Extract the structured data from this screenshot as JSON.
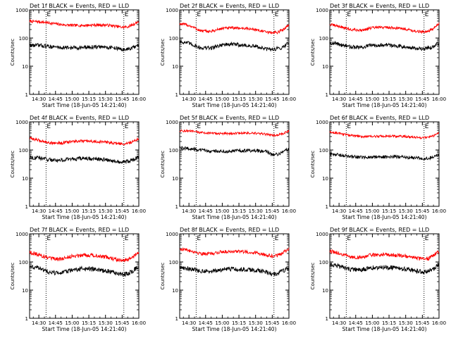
{
  "figure": {
    "background": "#ffffff"
  },
  "colors": {
    "events": "#000000",
    "lld": "#ff0000",
    "axis": "#000000"
  },
  "chart_data": [
    {
      "type": "line",
      "title": "Det 1f BLACK = Events, RED = LLD",
      "xlabel": "Start Time (18-Jun-05 14:21:40)",
      "ylabel": "Counts/sec",
      "yscale": "log",
      "ylim": [
        1,
        1000
      ],
      "y_tick_labels": [
        "1",
        "10",
        "100",
        "1000"
      ],
      "x_tick_labels": [
        "14:30",
        "14:45",
        "15:00",
        "15:15",
        "15:30",
        "15:45",
        "16:00"
      ],
      "x_tick_minutes": [
        30,
        45,
        60,
        75,
        90,
        105,
        120
      ],
      "xlim_minutes": [
        21.67,
        120
      ],
      "markers": [
        {
          "label": "E",
          "x_minutes": 36.5,
          "style": "dotted"
        },
        {
          "label": "E",
          "x_minutes": 106.5,
          "style": "dotted"
        }
      ],
      "series": [
        {
          "color": "#ff0000",
          "x_minutes": [
            22,
            30,
            40,
            50,
            60,
            70,
            80,
            90,
            100,
            105,
            110,
            115,
            120
          ],
          "values": [
            390,
            380,
            340,
            300,
            280,
            280,
            290,
            290,
            260,
            240,
            250,
            300,
            390
          ],
          "noise": 0.05
        },
        {
          "color": "#000000",
          "x_minutes": [
            22,
            30,
            40,
            50,
            60,
            70,
            80,
            90,
            100,
            105,
            110,
            115,
            120
          ],
          "values": [
            55,
            55,
            50,
            46,
            45,
            46,
            48,
            48,
            44,
            38,
            40,
            45,
            55
          ],
          "noise": 0.07
        }
      ]
    },
    {
      "type": "line",
      "title": "Det 2f BLACK = Events, RED = LLD",
      "xlabel": "Start Time (18-Jun-05 14:21:40)",
      "ylabel": "Counts/sec",
      "yscale": "log",
      "ylim": [
        1,
        1000
      ],
      "y_tick_labels": [
        "1",
        "10",
        "100",
        "1000"
      ],
      "x_tick_labels": [
        "14:30",
        "14:45",
        "15:00",
        "15:15",
        "15:30",
        "15:45",
        "16:00"
      ],
      "x_tick_minutes": [
        30,
        45,
        60,
        75,
        90,
        105,
        120
      ],
      "xlim_minutes": [
        21.67,
        120
      ],
      "markers": [
        {
          "label": "E",
          "x_minutes": 36.5,
          "style": "dotted"
        },
        {
          "label": "E",
          "x_minutes": 106.5,
          "style": "dotted"
        }
      ],
      "series": [
        {
          "color": "#ff0000",
          "x_minutes": [
            22,
            30,
            40,
            50,
            60,
            70,
            80,
            90,
            100,
            105,
            110,
            115,
            120
          ],
          "values": [
            320,
            280,
            180,
            170,
            220,
            230,
            220,
            200,
            160,
            155,
            160,
            200,
            300
          ],
          "noise": 0.05
        },
        {
          "color": "#000000",
          "x_minutes": [
            22,
            30,
            40,
            50,
            60,
            70,
            80,
            90,
            100,
            105,
            110,
            115,
            120
          ],
          "values": [
            75,
            65,
            45,
            44,
            58,
            60,
            55,
            50,
            40,
            40,
            42,
            48,
            70
          ],
          "noise": 0.07
        }
      ]
    },
    {
      "type": "line",
      "title": "Det 3f BLACK = Events, RED = LLD",
      "xlabel": "Start Time (18-Jun-05 14:21:40)",
      "ylabel": "Counts/sec",
      "yscale": "log",
      "ylim": [
        1,
        1000
      ],
      "y_tick_labels": [
        "1",
        "10",
        "100",
        "1000"
      ],
      "x_tick_labels": [
        "14:30",
        "14:45",
        "15:00",
        "15:15",
        "15:30",
        "15:45",
        "16:00"
      ],
      "x_tick_minutes": [
        30,
        45,
        60,
        75,
        90,
        105,
        120
      ],
      "xlim_minutes": [
        21.67,
        120
      ],
      "markers": [
        {
          "label": "E",
          "x_minutes": 36.5,
          "style": "dotted"
        },
        {
          "label": "E",
          "x_minutes": 106.5,
          "style": "dotted"
        }
      ],
      "series": [
        {
          "color": "#ff0000",
          "x_minutes": [
            22,
            30,
            40,
            50,
            60,
            70,
            80,
            90,
            100,
            105,
            110,
            115,
            120
          ],
          "values": [
            300,
            260,
            200,
            190,
            230,
            240,
            230,
            210,
            170,
            165,
            175,
            210,
            320
          ],
          "noise": 0.05
        },
        {
          "color": "#000000",
          "x_minutes": [
            22,
            30,
            40,
            50,
            60,
            70,
            80,
            90,
            100,
            105,
            110,
            115,
            120
          ],
          "values": [
            68,
            60,
            48,
            46,
            56,
            58,
            54,
            50,
            42,
            41,
            44,
            50,
            68
          ],
          "noise": 0.07
        }
      ]
    },
    {
      "type": "line",
      "title": "Det 4f BLACK = Events, RED = LLD",
      "xlabel": "Start Time (18-Jun-05 14:21:40)",
      "ylabel": "Counts/sec",
      "yscale": "log",
      "ylim": [
        1,
        1000
      ],
      "y_tick_labels": [
        "1",
        "10",
        "100",
        "1000"
      ],
      "x_tick_labels": [
        "14:30",
        "14:45",
        "15:00",
        "15:15",
        "15:30",
        "15:45",
        "16:00"
      ],
      "x_tick_minutes": [
        30,
        45,
        60,
        75,
        90,
        105,
        120
      ],
      "xlim_minutes": [
        21.67,
        120
      ],
      "markers": [
        {
          "label": "E",
          "x_minutes": 36.5,
          "style": "dotted"
        },
        {
          "label": "E",
          "x_minutes": 106.5,
          "style": "dotted"
        }
      ],
      "series": [
        {
          "color": "#ff0000",
          "x_minutes": [
            22,
            30,
            40,
            50,
            60,
            70,
            80,
            90,
            100,
            105,
            110,
            115,
            120
          ],
          "values": [
            260,
            220,
            180,
            175,
            200,
            205,
            200,
            190,
            170,
            165,
            170,
            200,
            260
          ],
          "noise": 0.05
        },
        {
          "color": "#000000",
          "x_minutes": [
            22,
            30,
            40,
            50,
            60,
            70,
            80,
            90,
            100,
            105,
            110,
            115,
            120
          ],
          "values": [
            55,
            52,
            45,
            43,
            48,
            50,
            48,
            45,
            40,
            38,
            40,
            45,
            55
          ],
          "noise": 0.07
        }
      ]
    },
    {
      "type": "line",
      "title": "Det 5f BLACK = Events, RED = LLD",
      "xlabel": "Start Time (18-Jun-05 14:21:40)",
      "ylabel": "Counts/sec",
      "yscale": "log",
      "ylim": [
        1,
        1000
      ],
      "y_tick_labels": [
        "1",
        "10",
        "100",
        "1000"
      ],
      "x_tick_labels": [
        "14:30",
        "14:45",
        "15:00",
        "15:15",
        "15:30",
        "15:45",
        "16:00"
      ],
      "x_tick_minutes": [
        30,
        45,
        60,
        75,
        90,
        105,
        120
      ],
      "xlim_minutes": [
        21.67,
        120
      ],
      "markers": [
        {
          "label": "E",
          "x_minutes": 36.5,
          "style": "dotted"
        },
        {
          "label": "E",
          "x_minutes": 106.5,
          "style": "dotted"
        }
      ],
      "series": [
        {
          "color": "#ff0000",
          "x_minutes": [
            22,
            30,
            40,
            50,
            60,
            70,
            80,
            90,
            100,
            105,
            110,
            115,
            120
          ],
          "values": [
            480,
            470,
            420,
            390,
            380,
            390,
            400,
            390,
            360,
            330,
            340,
            380,
            480
          ],
          "noise": 0.04
        },
        {
          "color": "#000000",
          "x_minutes": [
            22,
            30,
            40,
            50,
            60,
            70,
            80,
            90,
            100,
            105,
            110,
            115,
            120
          ],
          "values": [
            120,
            110,
            100,
            92,
            90,
            92,
            96,
            95,
            88,
            65,
            72,
            85,
            115
          ],
          "noise": 0.06
        }
      ]
    },
    {
      "type": "line",
      "title": "Det 6f BLACK = Events, RED = LLD",
      "xlabel": "Start Time (18-Jun-05 14:21:40)",
      "ylabel": "Counts/sec",
      "yscale": "log",
      "ylim": [
        1,
        1000
      ],
      "y_tick_labels": [
        "1",
        "10",
        "100",
        "1000"
      ],
      "x_tick_labels": [
        "14:30",
        "14:45",
        "15:00",
        "15:15",
        "15:30",
        "15:45",
        "16:00"
      ],
      "x_tick_minutes": [
        30,
        45,
        60,
        75,
        90,
        105,
        120
      ],
      "xlim_minutes": [
        21.67,
        120
      ],
      "markers": [
        {
          "label": "E",
          "x_minutes": 36.5,
          "style": "dotted"
        },
        {
          "label": "E",
          "x_minutes": 106.5,
          "style": "dotted"
        }
      ],
      "series": [
        {
          "color": "#ff0000",
          "x_minutes": [
            22,
            30,
            40,
            50,
            60,
            70,
            80,
            90,
            100,
            105,
            110,
            115,
            120
          ],
          "values": [
            420,
            390,
            330,
            300,
            300,
            310,
            310,
            300,
            280,
            270,
            280,
            320,
            420
          ],
          "noise": 0.04
        },
        {
          "color": "#000000",
          "x_minutes": [
            22,
            30,
            40,
            50,
            60,
            70,
            80,
            90,
            100,
            105,
            110,
            115,
            120
          ],
          "values": [
            70,
            66,
            58,
            55,
            56,
            57,
            58,
            56,
            52,
            48,
            50,
            56,
            70
          ],
          "noise": 0.06
        }
      ]
    },
    {
      "type": "line",
      "title": "Det 7f BLACK = Events, RED = LLD",
      "xlabel": "Start Time (18-Jun-05 14:21:40)",
      "ylabel": "Counts/sec",
      "yscale": "log",
      "ylim": [
        1,
        1000
      ],
      "y_tick_labels": [
        "1",
        "10",
        "100",
        "1000"
      ],
      "x_tick_labels": [
        "14:30",
        "14:45",
        "15:00",
        "15:15",
        "15:30",
        "15:45",
        "16:00"
      ],
      "x_tick_minutes": [
        30,
        45,
        60,
        75,
        90,
        105,
        120
      ],
      "xlim_minutes": [
        21.67,
        120
      ],
      "markers": [
        {
          "label": "E",
          "x_minutes": 36.5,
          "style": "dotted"
        },
        {
          "label": "E",
          "x_minutes": 106.5,
          "style": "dotted"
        }
      ],
      "series": [
        {
          "color": "#ff0000",
          "x_minutes": [
            22,
            30,
            40,
            50,
            60,
            70,
            80,
            90,
            100,
            105,
            110,
            115,
            120
          ],
          "values": [
            220,
            180,
            130,
            125,
            160,
            180,
            170,
            150,
            120,
            110,
            115,
            150,
            220
          ],
          "noise": 0.07
        },
        {
          "color": "#000000",
          "x_minutes": [
            22,
            30,
            40,
            50,
            60,
            70,
            80,
            90,
            100,
            105,
            110,
            115,
            120
          ],
          "values": [
            70,
            60,
            42,
            40,
            52,
            58,
            55,
            48,
            40,
            36,
            38,
            48,
            70
          ],
          "noise": 0.08
        }
      ]
    },
    {
      "type": "line",
      "title": "Det 8f BLACK = Events, RED = LLD",
      "xlabel": "Start Time (18-Jun-05 14:21:40)",
      "ylabel": "Counts/sec",
      "yscale": "log",
      "ylim": [
        1,
        1000
      ],
      "y_tick_labels": [
        "1",
        "10",
        "100",
        "1000"
      ],
      "x_tick_labels": [
        "14:30",
        "14:45",
        "15:00",
        "15:15",
        "15:30",
        "15:45",
        "16:00"
      ],
      "x_tick_minutes": [
        30,
        45,
        60,
        75,
        90,
        105,
        120
      ],
      "xlim_minutes": [
        21.67,
        120
      ],
      "markers": [
        {
          "label": "E",
          "x_minutes": 36.5,
          "style": "dotted"
        },
        {
          "label": "E",
          "x_minutes": 106.5,
          "style": "dotted"
        }
      ],
      "series": [
        {
          "color": "#ff0000",
          "x_minutes": [
            22,
            30,
            40,
            50,
            60,
            70,
            80,
            90,
            100,
            105,
            110,
            115,
            120
          ],
          "values": [
            290,
            260,
            200,
            195,
            230,
            240,
            230,
            210,
            180,
            160,
            170,
            210,
            290
          ],
          "noise": 0.06
        },
        {
          "color": "#000000",
          "x_minutes": [
            22,
            30,
            40,
            50,
            60,
            70,
            80,
            90,
            100,
            105,
            110,
            115,
            120
          ],
          "values": [
            65,
            58,
            48,
            46,
            54,
            56,
            54,
            50,
            44,
            36,
            40,
            48,
            62
          ],
          "noise": 0.08
        }
      ]
    },
    {
      "type": "line",
      "title": "Det 9f BLACK = Events, RED = LLD",
      "xlabel": "Start Time (18-Jun-05 14:21:40)",
      "ylabel": "Counts/sec",
      "yscale": "log",
      "ylim": [
        1,
        1000
      ],
      "y_tick_labels": [
        "1",
        "10",
        "100",
        "1000"
      ],
      "x_tick_labels": [
        "14:30",
        "14:45",
        "15:00",
        "15:15",
        "15:30",
        "15:45",
        "16:00"
      ],
      "x_tick_minutes": [
        30,
        45,
        60,
        75,
        90,
        105,
        120
      ],
      "xlim_minutes": [
        21.67,
        120
      ],
      "markers": [
        {
          "label": "E",
          "x_minutes": 36.5,
          "style": "dotted"
        },
        {
          "label": "E",
          "x_minutes": 106.5,
          "style": "dotted"
        }
      ],
      "series": [
        {
          "color": "#ff0000",
          "x_minutes": [
            22,
            30,
            40,
            50,
            60,
            70,
            80,
            90,
            100,
            105,
            110,
            115,
            120
          ],
          "values": [
            240,
            200,
            150,
            145,
            175,
            185,
            175,
            160,
            135,
            125,
            130,
            165,
            240
          ],
          "noise": 0.07
        },
        {
          "color": "#000000",
          "x_minutes": [
            22,
            30,
            40,
            50,
            60,
            70,
            80,
            90,
            100,
            105,
            110,
            115,
            120
          ],
          "values": [
            80,
            70,
            55,
            52,
            62,
            66,
            62,
            56,
            48,
            44,
            46,
            56,
            80
          ],
          "noise": 0.08
        }
      ]
    }
  ]
}
